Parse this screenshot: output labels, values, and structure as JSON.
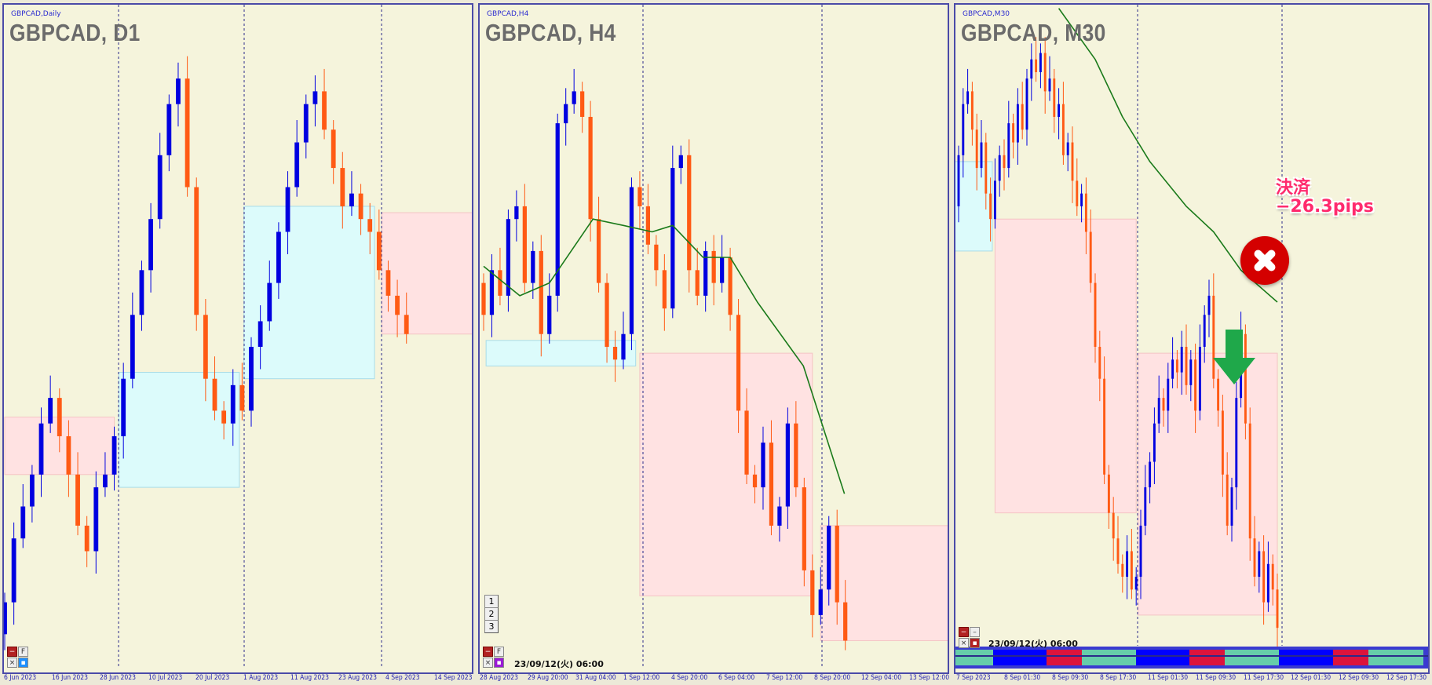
{
  "colors": {
    "up": "#0000e0",
    "down": "#ff5a14",
    "ma": "#1a7a1a",
    "box_blue": "#dcfbfb",
    "box_pink": "#ffe2e2",
    "bg": "#f5f4dc",
    "session_teal": "#66cdaa",
    "session_blue": "#0000ff",
    "session_red": "#dc143c"
  },
  "panels": [
    {
      "id": "d1",
      "label": "GBPCAD,Daily",
      "title": "GBPCAD, D1",
      "closes": [
        10,
        20,
        25,
        30,
        38,
        42,
        36,
        30,
        22,
        18,
        28,
        30,
        36,
        45,
        55,
        62,
        70,
        80,
        88,
        92,
        75,
        55,
        45,
        40,
        38,
        44,
        40,
        50,
        54,
        60,
        68,
        75,
        82,
        88,
        90,
        84,
        78,
        72,
        74,
        70,
        68,
        62,
        58,
        55,
        52
      ],
      "first_open": 5,
      "boxes": [
        {
          "color": "pink",
          "from": 0,
          "to": 12,
          "top": 39,
          "bottom": 30
        },
        {
          "color": "blue",
          "from": 12.5,
          "to": 25.7,
          "top": 46,
          "bottom": 28
        },
        {
          "color": "blue",
          "from": 26.2,
          "to": 40.5,
          "top": 72,
          "bottom": 45
        },
        {
          "color": "pink",
          "from": 41.3,
          "to": 52,
          "top": 71,
          "bottom": 52
        }
      ],
      "ticks": [
        "6 Jun 2023",
        "16 Jun 2023",
        "28 Jun 2023",
        "10 Jul 2023",
        "20 Jul 2023",
        "1 Aug 2023",
        "11 Aug 2023",
        "23 Aug 2023",
        "4 Sep 2023",
        "14 Sep 2023"
      ],
      "buttons": {
        "minus": "−",
        "f": "F",
        "close": "×",
        "dot": "▪"
      }
    },
    {
      "id": "h4",
      "label": "GBPCAD,H4",
      "title": "GBPCAD, H4",
      "closes": [
        55,
        62,
        58,
        70,
        72,
        60,
        65,
        52,
        58,
        85,
        88,
        90,
        86,
        70,
        60,
        50,
        48,
        52,
        75,
        72,
        66,
        62,
        56,
        78,
        80,
        62,
        58,
        65,
        60,
        64,
        55,
        40,
        30,
        28,
        35,
        22,
        25,
        38,
        28,
        15,
        8,
        12,
        22,
        10,
        4
      ],
      "first_open": 60,
      "ma": [
        [
          0,
          62.6
        ],
        [
          4.4,
          58
        ],
        [
          8,
          60
        ],
        [
          13.3,
          70
        ],
        [
          17,
          69
        ],
        [
          20.5,
          68
        ],
        [
          23,
          69
        ],
        [
          26.7,
          64
        ],
        [
          30,
          64
        ],
        [
          33.3,
          57
        ],
        [
          38.9,
          47
        ],
        [
          43.9,
          27
        ]
      ],
      "boxes": [
        {
          "color": "blue",
          "from": 0.3,
          "to": 18.5,
          "top": 51,
          "bottom": 47
        },
        {
          "color": "pink",
          "from": 19,
          "to": 40,
          "top": 49,
          "bottom": 11
        },
        {
          "color": "pink",
          "from": 41,
          "to": 57,
          "top": 22,
          "bottom": 4
        }
      ],
      "ticks": [
        "28 Aug 2023",
        "29 Aug 20:00",
        "31 Aug 04:00",
        "1 Sep 12:00",
        "4 Sep 20:00",
        "6 Sep 04:00",
        "7 Sep 12:00",
        "8 Sep 20:00",
        "12 Sep 04:00",
        "13 Sep 12:00"
      ],
      "number_buttons": [
        "1",
        "2",
        "3"
      ],
      "timestamp": "23/09/12(火) 06:00",
      "buttons": {
        "minus": "−",
        "f": "F",
        "close": "×",
        "dot": "▪"
      }
    },
    {
      "id": "m30",
      "label": "GBPCAD,M30",
      "title": "GBPCAD, M30",
      "closes": [
        80,
        88,
        90,
        84,
        78,
        82,
        74,
        70,
        76,
        80,
        78,
        85,
        82,
        88,
        84,
        92,
        95,
        93,
        96,
        90,
        92,
        86,
        88,
        80,
        82,
        76,
        72,
        74,
        68,
        60,
        50,
        45,
        30,
        24,
        20,
        16,
        14,
        18,
        12,
        14,
        22,
        28,
        32,
        38,
        42,
        40,
        45,
        48,
        46,
        50,
        44,
        48,
        40,
        50,
        55,
        58,
        45,
        40,
        30,
        22,
        28,
        42,
        52,
        38,
        20,
        14,
        18,
        10,
        16,
        12,
        6
      ],
      "first_open": 72,
      "ma": [
        [
          22,
          103
        ],
        [
          30,
          95
        ],
        [
          36,
          86
        ],
        [
          42,
          79
        ],
        [
          50,
          72
        ],
        [
          56,
          68
        ],
        [
          62,
          62
        ],
        [
          70,
          57
        ]
      ],
      "boxes": [
        {
          "color": "blue",
          "from": -1,
          "to": 7.4,
          "top": 79,
          "bottom": 65
        },
        {
          "color": "pink",
          "from": 8,
          "to": 39,
          "top": 70,
          "bottom": 24
        },
        {
          "color": "pink",
          "from": 39.4,
          "to": 70,
          "top": 49,
          "bottom": 8
        }
      ],
      "ticks": [
        "7 Sep 2023",
        "8 Sep 01:30",
        "8 Sep 09:30",
        "8 Sep 17:30",
        "11 Sep 01:30",
        "11 Sep 09:30",
        "11 Sep 17:30",
        "12 Sep 01:30",
        "12 Sep 09:30",
        "12 Sep 17:30"
      ],
      "timestamp": "23/09/12(火) 06:00",
      "sessions": [
        "teal",
        "blue",
        "red",
        "teal",
        "blue",
        "red",
        "teal",
        "blue",
        "red",
        "teal"
      ],
      "buttons": {
        "minus": "−",
        "f": "–",
        "close": "×",
        "dot": "▪"
      }
    }
  ],
  "annotation": {
    "line1": "決済",
    "line2": "−26.3pips",
    "icon": "close-circle-icon",
    "entry_icon": "down-arrow-icon"
  }
}
